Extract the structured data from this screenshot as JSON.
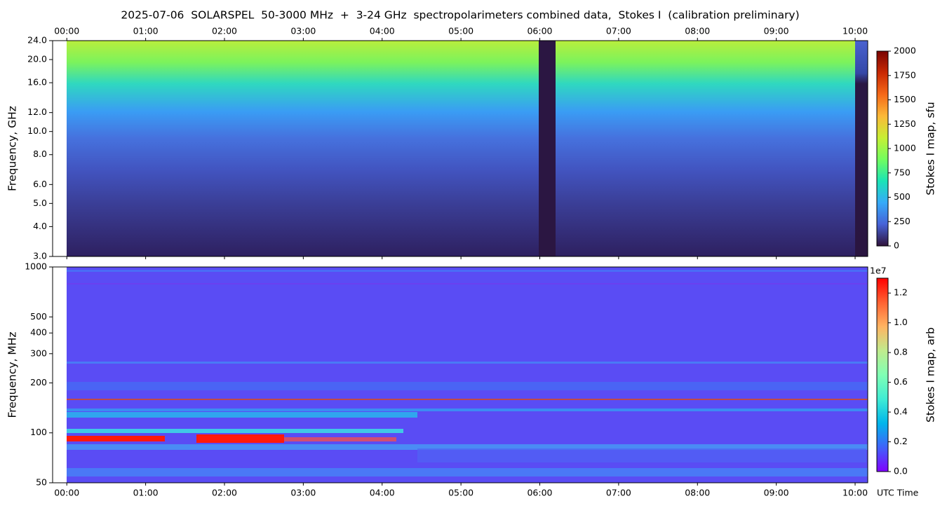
{
  "chart_data": [
    {
      "type": "heatmap",
      "title": "2025-07-06  SOLARSPEL  50-3000 MHz  +  3-24 GHz  spectropolarimeters combined data,  Stokes I  (calibration preliminary)",
      "ylabel": "Frequency, GHz",
      "yscale": "log",
      "xtick_position": "top",
      "xlim": [
        -0.18,
        10.16
      ],
      "xticks": [
        {
          "value": 0,
          "label": "00:00"
        },
        {
          "value": 1,
          "label": "01:00"
        },
        {
          "value": 2,
          "label": "02:00"
        },
        {
          "value": 3,
          "label": "03:00"
        },
        {
          "value": 4,
          "label": "04:00"
        },
        {
          "value": 5,
          "label": "05:00"
        },
        {
          "value": 6,
          "label": "06:00"
        },
        {
          "value": 7,
          "label": "07:00"
        },
        {
          "value": 8,
          "label": "08:00"
        },
        {
          "value": 9,
          "label": "09:00"
        },
        {
          "value": 10,
          "label": "10:00"
        }
      ],
      "ylim": [
        3,
        24
      ],
      "yticks": [
        {
          "value": 3,
          "label": "3.0"
        },
        {
          "value": 4,
          "label": "4.0"
        },
        {
          "value": 5,
          "label": "5.0"
        },
        {
          "value": 6,
          "label": "6.0"
        },
        {
          "value": 8,
          "label": "8.0"
        },
        {
          "value": 10,
          "label": "10.0"
        },
        {
          "value": 12,
          "label": "12.0"
        },
        {
          "value": 16,
          "label": "16.0"
        },
        {
          "value": 20,
          "label": "20.0"
        },
        {
          "value": 24,
          "label": "24.0"
        }
      ],
      "colormap": "turbo",
      "colorbar": {
        "label": "Stokes I map, sfu",
        "lim": [
          0,
          2000
        ],
        "ticks": [
          0,
          250,
          500,
          750,
          1000,
          1250,
          1500,
          1750,
          2000
        ]
      }
    },
    {
      "type": "heatmap",
      "xlabel": "UTC Time",
      "ylabel": "Frequency, MHz",
      "yscale": "log",
      "xtick_position": "bottom",
      "xlim": [
        -0.18,
        10.16
      ],
      "xticks": [
        {
          "value": 0,
          "label": "00:00"
        },
        {
          "value": 1,
          "label": "01:00"
        },
        {
          "value": 2,
          "label": "02:00"
        },
        {
          "value": 3,
          "label": "03:00"
        },
        {
          "value": 4,
          "label": "04:00"
        },
        {
          "value": 5,
          "label": "05:00"
        },
        {
          "value": 6,
          "label": "06:00"
        },
        {
          "value": 7,
          "label": "07:00"
        },
        {
          "value": 8,
          "label": "08:00"
        },
        {
          "value": 9,
          "label": "09:00"
        },
        {
          "value": 10,
          "label": "10:00"
        }
      ],
      "ylim": [
        50,
        1000
      ],
      "yticks": [
        50,
        100,
        200,
        300,
        400,
        500,
        1000
      ],
      "colormap": "rainbow",
      "colorbar": {
        "label": "Stokes I map, arb",
        "offset_text": "1e7",
        "lim": [
          0,
          1.3
        ],
        "ticks": [
          {
            "value": 0,
            "label": "0.0"
          },
          {
            "value": 0.2,
            "label": "0.2"
          },
          {
            "value": 0.4,
            "label": "0.4"
          },
          {
            "value": 0.6,
            "label": "0.6"
          },
          {
            "value": 0.8,
            "label": "0.8"
          },
          {
            "value": 1,
            "label": "1.0"
          },
          {
            "value": 1.2,
            "label": "1.2"
          }
        ]
      }
    }
  ]
}
